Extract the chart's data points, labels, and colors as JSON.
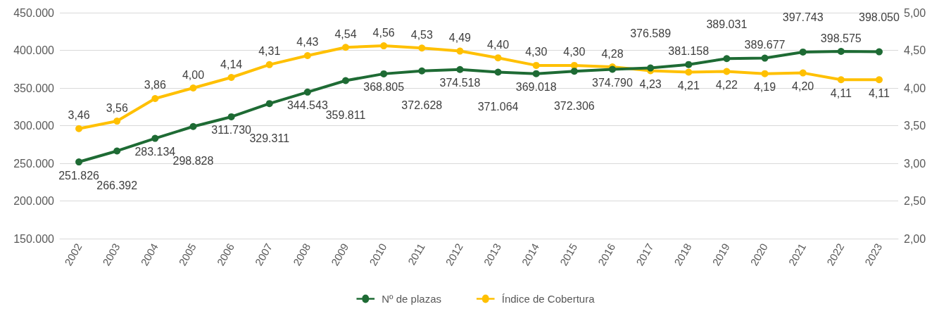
{
  "chart_data": {
    "type": "line",
    "categories": [
      "2002",
      "2003",
      "2004",
      "2005",
      "2006",
      "2007",
      "2008",
      "2009",
      "2010",
      "2011",
      "2012",
      "2013",
      "2014",
      "2015",
      "2016",
      "2017",
      "2018",
      "2019",
      "2020",
      "2021",
      "2022",
      "2023"
    ],
    "series": [
      {
        "name": "Nº de plazas",
        "color": "#1e6b34",
        "values": [
          251826,
          266392,
          283134,
          298828,
          311730,
          329311,
          344543,
          359811,
          368805,
          372628,
          374518,
          371064,
          369018,
          372306,
          374790,
          376589,
          381158,
          389031,
          389677,
          397743,
          398575,
          398050
        ],
        "value_labels": [
          "251.826",
          "266.392",
          "283.134",
          "298.828",
          "311.730",
          "329.311",
          "344.543",
          "359.811",
          "368.805",
          "372.628",
          "374.518",
          "371.064",
          "369.018",
          "372.306",
          "374.790",
          "376.589",
          "381.158",
          "389.031",
          "389.677",
          "397.743",
          "398.575",
          "398.050"
        ]
      },
      {
        "name": "Índice de Cobertura",
        "color": "#ffc000",
        "axis": "y2",
        "values": [
          3.46,
          3.56,
          3.86,
          4.0,
          4.14,
          4.31,
          4.43,
          4.54,
          4.56,
          4.53,
          4.49,
          4.4,
          4.3,
          4.3,
          4.28,
          4.23,
          4.21,
          4.22,
          4.19,
          4.2,
          4.11,
          4.11
        ],
        "value_labels": [
          "3,46",
          "3,56",
          "3,86",
          "4,00",
          "4,14",
          "4,31",
          "4,43",
          "4,54",
          "4,56",
          "4,53",
          "4,49",
          "4,40",
          "4,30",
          "4,30",
          "4,28",
          "4,23",
          "4,21",
          "4,22",
          "4,19",
          "4,20",
          "4,11",
          "4,11"
        ]
      }
    ],
    "ylim": [
      150000,
      450000
    ],
    "yticks": [
      {
        "value": 150000,
        "label": "150.000"
      },
      {
        "value": 200000,
        "label": "200.000"
      },
      {
        "value": 250000,
        "label": "250.000"
      },
      {
        "value": 300000,
        "label": "300.000"
      },
      {
        "value": 350000,
        "label": "350.000"
      },
      {
        "value": 400000,
        "label": "400.000"
      },
      {
        "value": 450000,
        "label": "450.000"
      }
    ],
    "y2lim": [
      2,
      5
    ],
    "y2ticks": [
      {
        "value": 2,
        "label": "2,00"
      },
      {
        "value": 2.5,
        "label": "2,50"
      },
      {
        "value": 3,
        "label": "3,00"
      },
      {
        "value": 3.5,
        "label": "3,50"
      },
      {
        "value": 4,
        "label": "4,00"
      },
      {
        "value": 4.5,
        "label": "4,50"
      },
      {
        "value": 5,
        "label": "5,00"
      }
    ],
    "grid": "y",
    "legend": "bottom",
    "marker": "circle",
    "line_style": "solid"
  }
}
